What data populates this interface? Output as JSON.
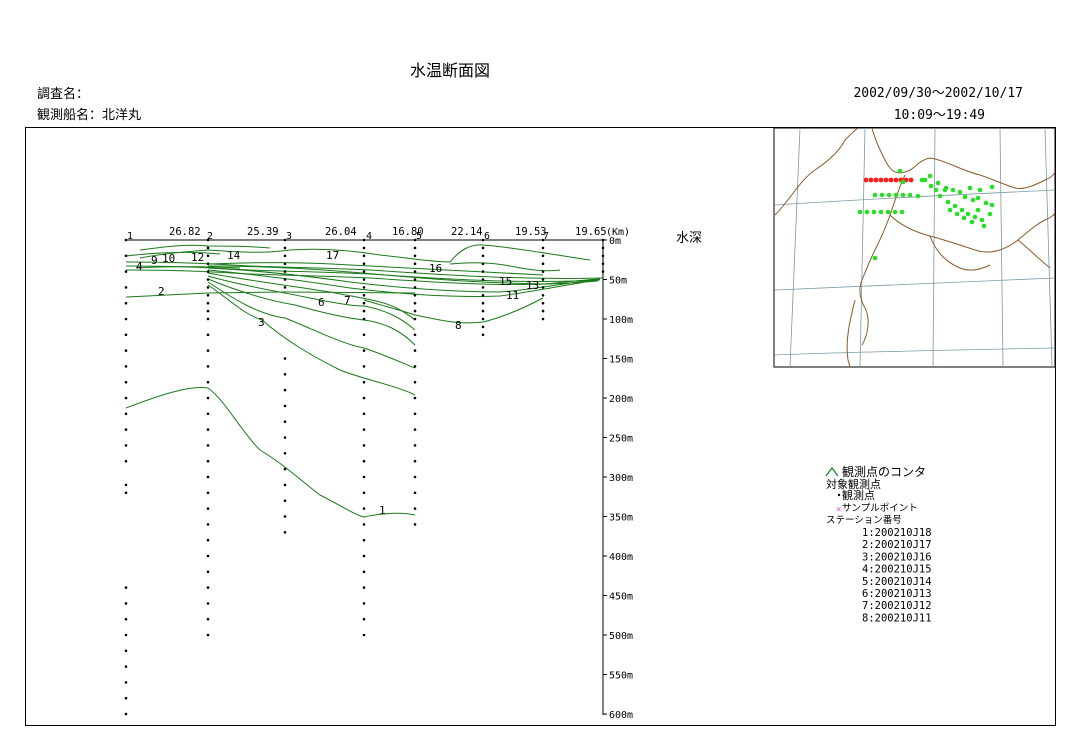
{
  "title": "水温断面図",
  "survey_label": "調査名：",
  "ship_label": "観測船名：北洋丸",
  "date_range": "2002/09/30～2002/10/17",
  "time_range": "10:09～19:49",
  "depth_axis_title": "水深",
  "chart_data": {
    "type": "contour",
    "title": "水温断面図",
    "ylabel": "水深",
    "y_unit": "m",
    "ylim": [
      0,
      600
    ],
    "y_ticks": [
      "0m",
      "50m",
      "100m",
      "150m",
      "200m",
      "250m",
      "300m",
      "350m",
      "400m",
      "450m",
      "500m",
      "550m",
      "600m"
    ],
    "distance_unit": "Km",
    "stations": [
      {
        "id": "1",
        "cast_depth": 600,
        "observed_depths": [
          0,
          20,
          40,
          60,
          80,
          100,
          120,
          140,
          160,
          180,
          200,
          220,
          240,
          260,
          280,
          310,
          320,
          440,
          460,
          480,
          500,
          520,
          540,
          560,
          580,
          600
        ]
      },
      {
        "id": "2",
        "cast_depth": 505,
        "observed_depths": [
          0,
          10,
          20,
          30,
          40,
          50,
          60,
          70,
          80,
          90,
          100,
          120,
          140,
          160,
          180,
          200,
          220,
          240,
          260,
          280,
          300,
          320,
          340,
          360,
          380,
          400,
          420,
          440,
          460,
          480,
          500
        ]
      },
      {
        "id": "3",
        "cast_depth": 375,
        "observed_depths": [
          0,
          10,
          20,
          30,
          40,
          50,
          60,
          150,
          170,
          190,
          210,
          230,
          250,
          270,
          290,
          310,
          330,
          350,
          370
        ]
      },
      {
        "id": "4",
        "cast_depth": 505,
        "observed_depths": [
          0,
          10,
          20,
          30,
          40,
          50,
          60,
          70,
          80,
          90,
          100,
          120,
          140,
          160,
          180,
          200,
          220,
          240,
          260,
          280,
          300,
          320,
          340,
          360,
          380,
          400,
          420,
          440,
          460,
          480,
          500
        ]
      },
      {
        "id": "5",
        "cast_depth": 365,
        "observed_depths": [
          0,
          10,
          20,
          30,
          40,
          50,
          60,
          70,
          80,
          90,
          100,
          120,
          140,
          160,
          180,
          200,
          220,
          240,
          260,
          280,
          300,
          320,
          340,
          360
        ]
      },
      {
        "id": "6",
        "cast_depth": 120,
        "observed_depths": [
          0,
          10,
          20,
          30,
          40,
          50,
          60,
          70,
          80,
          90,
          100,
          110,
          120
        ]
      },
      {
        "id": "7",
        "cast_depth": 105,
        "observed_depths": [
          0,
          10,
          20,
          30,
          40,
          50,
          60,
          70,
          80,
          90,
          100
        ]
      },
      {
        "id": "8",
        "cast_depth": 45,
        "observed_depths": [
          0,
          10,
          20,
          30,
          40
        ]
      }
    ],
    "station_distances_km": [
      "26.82",
      "25.39",
      "26.04",
      "16.80",
      "22.14",
      "19.53",
      "19.65"
    ],
    "contour_labels": [
      "1",
      "2",
      "3",
      "4",
      "6",
      "7",
      "8",
      "9",
      "10",
      "11",
      "12",
      "13",
      "14",
      "15",
      "16",
      "17"
    ],
    "legend": {
      "contour": "観測点のコンタ",
      "target_points": "対象観測点",
      "points": "観測点",
      "sample_points": "サンプルポイント",
      "station_numbers": "ステーション番号",
      "station_list": [
        "1:200210J18",
        "2:200210J17",
        "3:200210J16",
        "4:200210J15",
        "5:200210J14",
        "6:200210J13",
        "7:200210J12",
        "8:200210J11"
      ]
    }
  },
  "colors": {
    "contour": "#1a7a1a",
    "station_dot": "#000000",
    "map_coast": "#8b5a2b",
    "map_grid": "#7a9aa6",
    "survey_dot": "#ff1a1a",
    "other_dot": "#22e022",
    "sample_mark": "#ff44ff"
  }
}
